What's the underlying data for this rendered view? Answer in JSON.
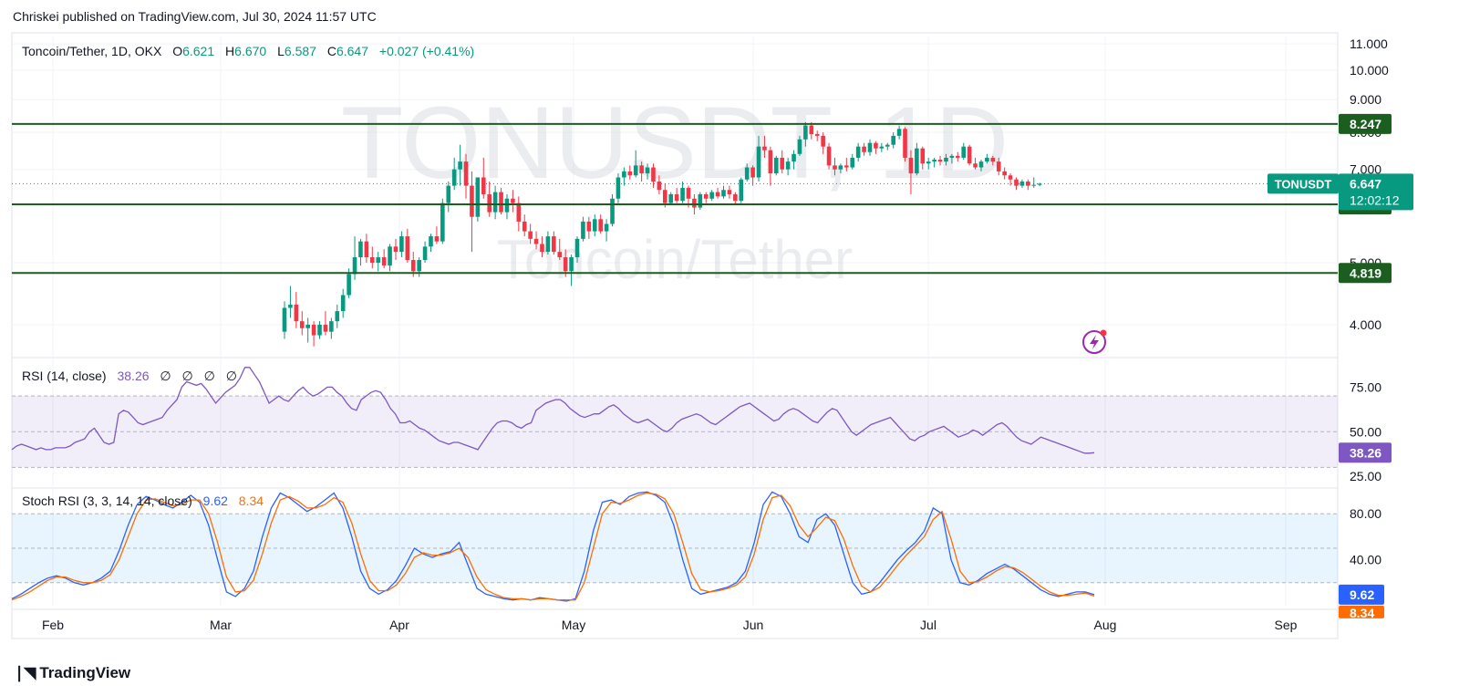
{
  "header": {
    "publisher": "Chriskei published on TradingView.com, Jul 30, 2024 11:57 UTC"
  },
  "footer": {
    "brand": "TradingView"
  },
  "colors": {
    "up": "#089981",
    "down": "#f23645",
    "level": "#1b5e20",
    "rsi": "#7e57c2",
    "stoch_k": "#2962ff",
    "stoch_d": "#ff6d00",
    "ticker_tag": "#089981",
    "rsi_tag": "#7e57c2"
  },
  "chart_data": [
    {
      "type": "candlestick",
      "legend": {
        "symbol": "Toncoin/Tether, 1D, OKX",
        "o_label": "O",
        "o": "6.621",
        "h_label": "H",
        "h": "6.670",
        "l_label": "L",
        "l": "6.587",
        "c_label": "C",
        "c": "6.647",
        "change": "+0.027 (+0.41%)"
      },
      "watermark": {
        "line1": "TONUSDT, 1D",
        "line2": "Toncoin/Tether"
      },
      "y_ticks": [
        "11.000",
        "10.000",
        "9.000",
        "8.000",
        "7.000",
        "5.000",
        "4.000"
      ],
      "ylim": [
        3.6,
        11.3
      ],
      "x_ticks": [
        "Feb",
        "Mar",
        "Apr",
        "May",
        "Jun",
        "Jul",
        "Aug",
        "Sep"
      ],
      "levels": [
        {
          "label": "8.247",
          "value": 8.247
        },
        {
          "label": "6.171",
          "value": 6.171
        },
        {
          "label": "4.819",
          "value": 4.819
        }
      ],
      "last_price": {
        "ticker": "TONUSDT",
        "price": "6.647",
        "countdown": "12:02:12",
        "value": 6.647
      },
      "ohlc": [
        [
          3.9,
          4.35,
          3.8,
          4.25
        ],
        [
          4.25,
          4.6,
          4.1,
          4.3
        ],
        [
          4.3,
          4.5,
          3.95,
          4.05
        ],
        [
          4.05,
          4.2,
          3.85,
          3.95
        ],
        [
          3.95,
          4.1,
          3.75,
          4.0
        ],
        [
          4.0,
          4.05,
          3.7,
          3.85
        ],
        [
          3.85,
          4.05,
          3.8,
          4.0
        ],
        [
          4.0,
          4.2,
          3.85,
          3.9
        ],
        [
          3.9,
          4.1,
          3.8,
          4.05
        ],
        [
          4.05,
          4.3,
          3.95,
          4.2
        ],
        [
          4.2,
          4.55,
          4.1,
          4.45
        ],
        [
          4.45,
          4.9,
          4.4,
          4.8
        ],
        [
          4.8,
          5.5,
          4.7,
          5.1
        ],
        [
          5.1,
          5.45,
          4.95,
          5.4
        ],
        [
          5.4,
          5.55,
          5.0,
          5.1
        ],
        [
          5.1,
          5.3,
          4.9,
          5.0
        ],
        [
          5.0,
          5.2,
          4.85,
          5.1
        ],
        [
          5.1,
          5.25,
          4.9,
          4.95
        ],
        [
          4.95,
          5.35,
          4.85,
          5.3
        ],
        [
          5.3,
          5.45,
          5.05,
          5.2
        ],
        [
          5.2,
          5.6,
          5.1,
          5.5
        ],
        [
          5.5,
          5.65,
          5.0,
          5.05
        ],
        [
          5.05,
          5.2,
          4.75,
          4.85
        ],
        [
          4.85,
          5.1,
          4.75,
          5.05
        ],
        [
          5.05,
          5.4,
          5.0,
          5.3
        ],
        [
          5.3,
          5.55,
          5.2,
          5.5
        ],
        [
          5.5,
          5.7,
          5.35,
          5.4
        ],
        [
          5.4,
          6.3,
          5.35,
          6.2
        ],
        [
          6.2,
          6.7,
          6.0,
          6.6
        ],
        [
          6.6,
          7.3,
          6.5,
          7.0
        ],
        [
          7.0,
          7.65,
          6.6,
          7.2
        ],
        [
          7.2,
          7.4,
          6.3,
          6.6
        ],
        [
          6.6,
          6.95,
          5.2,
          5.9
        ],
        [
          5.9,
          6.8,
          5.8,
          6.8
        ],
        [
          6.8,
          7.3,
          6.3,
          6.4
        ],
        [
          6.4,
          6.7,
          5.9,
          6.0
        ],
        [
          6.0,
          6.6,
          5.85,
          6.45
        ],
        [
          6.45,
          6.55,
          5.95,
          6.0
        ],
        [
          6.0,
          6.4,
          5.85,
          6.3
        ],
        [
          6.3,
          6.5,
          6.0,
          6.2
        ],
        [
          6.2,
          6.35,
          5.6,
          5.8
        ],
        [
          5.8,
          5.95,
          5.5,
          5.6
        ],
        [
          5.6,
          5.75,
          5.35,
          5.45
        ],
        [
          5.45,
          5.6,
          5.25,
          5.35
        ],
        [
          5.35,
          5.5,
          5.1,
          5.2
        ],
        [
          5.2,
          5.6,
          5.15,
          5.5
        ],
        [
          5.5,
          5.6,
          5.15,
          5.2
        ],
        [
          5.2,
          5.45,
          5.05,
          5.1
        ],
        [
          5.1,
          5.25,
          4.75,
          4.85
        ],
        [
          4.85,
          5.15,
          4.6,
          5.1
        ],
        [
          5.1,
          5.5,
          5.0,
          5.45
        ],
        [
          5.45,
          5.9,
          5.4,
          5.8
        ],
        [
          5.8,
          5.9,
          5.45,
          5.6
        ],
        [
          5.6,
          5.95,
          5.5,
          5.85
        ],
        [
          5.85,
          5.95,
          5.55,
          5.6
        ],
        [
          5.6,
          5.85,
          5.4,
          5.75
        ],
        [
          5.75,
          6.4,
          5.7,
          6.3
        ],
        [
          6.3,
          6.9,
          6.2,
          6.8
        ],
        [
          6.8,
          7.05,
          6.6,
          6.95
        ],
        [
          6.95,
          7.1,
          6.75,
          6.85
        ],
        [
          6.85,
          7.5,
          6.8,
          7.1
        ],
        [
          7.1,
          7.2,
          6.7,
          6.9
        ],
        [
          6.9,
          7.15,
          6.75,
          7.05
        ],
        [
          7.05,
          7.15,
          6.55,
          6.7
        ],
        [
          6.7,
          6.85,
          6.4,
          6.5
        ],
        [
          6.5,
          6.65,
          6.1,
          6.2
        ],
        [
          6.2,
          6.45,
          6.15,
          6.4
        ],
        [
          6.4,
          6.55,
          6.2,
          6.25
        ],
        [
          6.25,
          6.7,
          6.2,
          6.55
        ],
        [
          6.55,
          6.6,
          6.1,
          6.3
        ],
        [
          6.3,
          6.4,
          5.95,
          6.1
        ],
        [
          6.1,
          6.45,
          6.05,
          6.4
        ],
        [
          6.4,
          6.45,
          6.2,
          6.3
        ],
        [
          6.3,
          6.5,
          6.25,
          6.45
        ],
        [
          6.45,
          6.55,
          6.3,
          6.35
        ],
        [
          6.35,
          6.6,
          6.3,
          6.5
        ],
        [
          6.5,
          6.6,
          6.3,
          6.4
        ],
        [
          6.4,
          6.45,
          6.15,
          6.25
        ],
        [
          6.25,
          6.8,
          6.2,
          6.75
        ],
        [
          6.75,
          7.15,
          6.7,
          7.05
        ],
        [
          7.05,
          7.1,
          6.6,
          6.8
        ],
        [
          6.8,
          7.9,
          6.7,
          7.6
        ],
        [
          7.6,
          7.9,
          7.3,
          7.5
        ],
        [
          7.5,
          7.6,
          6.6,
          6.9
        ],
        [
          6.9,
          7.35,
          6.85,
          7.3
        ],
        [
          7.3,
          7.5,
          6.9,
          7.0
        ],
        [
          7.0,
          7.3,
          6.85,
          7.2
        ],
        [
          7.2,
          7.5,
          7.0,
          7.4
        ],
        [
          7.4,
          7.9,
          7.35,
          7.8
        ],
        [
          7.8,
          8.3,
          7.6,
          8.2
        ],
        [
          8.2,
          8.3,
          7.8,
          7.95
        ],
        [
          7.95,
          8.05,
          7.75,
          7.9
        ],
        [
          7.9,
          8.0,
          7.4,
          7.6
        ],
        [
          7.6,
          7.7,
          7.0,
          7.1
        ],
        [
          7.1,
          7.3,
          6.85,
          7.0
        ],
        [
          7.0,
          7.15,
          6.9,
          7.1
        ],
        [
          7.1,
          7.3,
          6.95,
          7.05
        ],
        [
          7.05,
          7.4,
          7.0,
          7.3
        ],
        [
          7.3,
          7.7,
          7.2,
          7.6
        ],
        [
          7.6,
          7.7,
          7.35,
          7.45
        ],
        [
          7.45,
          7.8,
          7.35,
          7.7
        ],
        [
          7.7,
          7.75,
          7.4,
          7.55
        ],
        [
          7.55,
          7.7,
          7.45,
          7.6
        ],
        [
          7.6,
          7.7,
          7.5,
          7.65
        ],
        [
          7.65,
          8.0,
          7.55,
          7.9
        ],
        [
          7.9,
          8.2,
          7.8,
          8.1
        ],
        [
          8.1,
          8.15,
          7.2,
          7.3
        ],
        [
          7.3,
          7.5,
          6.4,
          6.9
        ],
        [
          6.9,
          7.7,
          6.85,
          7.55
        ],
        [
          7.55,
          7.6,
          7.0,
          7.15
        ],
        [
          7.15,
          7.3,
          7.0,
          7.2
        ],
        [
          7.2,
          7.3,
          7.05,
          7.25
        ],
        [
          7.25,
          7.35,
          7.1,
          7.2
        ],
        [
          7.2,
          7.4,
          7.1,
          7.3
        ],
        [
          7.3,
          7.4,
          7.15,
          7.35
        ],
        [
          7.35,
          7.45,
          7.2,
          7.3
        ],
        [
          7.3,
          7.7,
          7.25,
          7.6
        ],
        [
          7.6,
          7.65,
          7.1,
          7.15
        ],
        [
          7.15,
          7.3,
          7.0,
          7.05
        ],
        [
          7.05,
          7.25,
          6.95,
          7.2
        ],
        [
          7.2,
          7.4,
          7.15,
          7.3
        ],
        [
          7.3,
          7.35,
          7.1,
          7.2
        ],
        [
          7.2,
          7.3,
          6.85,
          6.95
        ],
        [
          6.95,
          7.05,
          6.75,
          6.85
        ],
        [
          6.85,
          6.9,
          6.6,
          6.75
        ],
        [
          6.75,
          6.8,
          6.5,
          6.6
        ],
        [
          6.6,
          6.75,
          6.55,
          6.7
        ],
        [
          6.7,
          6.75,
          6.5,
          6.6
        ],
        [
          6.6,
          6.8,
          6.55,
          6.62
        ],
        [
          6.621,
          6.67,
          6.587,
          6.647
        ]
      ]
    },
    {
      "type": "line",
      "title": "RSI (14, close)",
      "value_label": "38.26",
      "placeholders": [
        "∅",
        "∅",
        "∅",
        "∅"
      ],
      "y_ticks": [
        "75.00",
        "50.00",
        "25.00"
      ],
      "ylim": [
        20,
        90
      ],
      "band": [
        30,
        70
      ],
      "last_value": "38.26",
      "values": [
        40,
        42,
        43,
        42,
        41,
        40,
        41,
        40,
        40,
        41,
        41,
        41,
        42,
        44,
        45,
        46,
        50,
        52,
        48,
        44,
        43,
        44,
        60,
        62,
        61,
        58,
        55,
        54,
        55,
        56,
        57,
        58,
        62,
        65,
        68,
        75,
        78,
        77,
        76,
        77,
        74,
        70,
        66,
        69,
        72,
        74,
        76,
        80,
        86,
        86,
        82,
        78,
        72,
        66,
        68,
        70,
        68,
        67,
        70,
        73,
        75,
        72,
        70,
        71,
        73,
        75,
        75,
        72,
        70,
        66,
        63,
        62,
        68,
        70,
        72,
        73,
        72,
        68,
        63,
        60,
        55,
        55,
        56,
        54,
        52,
        51,
        49,
        47,
        45,
        44,
        43,
        44,
        44,
        43,
        42,
        41,
        40,
        44,
        48,
        52,
        55,
        56,
        56,
        55,
        53,
        52,
        54,
        55,
        62,
        64,
        66,
        67,
        68,
        68,
        66,
        63,
        61,
        59,
        58,
        59,
        60,
        60,
        62,
        64,
        65,
        63,
        60,
        58,
        56,
        55,
        56,
        57,
        55,
        53,
        51,
        50,
        52,
        55,
        57,
        58,
        59,
        60,
        59,
        57,
        55,
        54,
        56,
        58,
        60,
        62,
        64,
        65,
        66,
        64,
        62,
        60,
        58,
        56,
        57,
        60,
        62,
        63,
        62,
        60,
        58,
        56,
        55,
        58,
        61,
        63,
        62,
        58,
        54,
        50,
        48,
        50,
        52,
        54,
        55,
        56,
        57,
        58,
        55,
        52,
        49,
        46,
        45,
        47,
        48,
        50,
        51,
        52,
        53,
        51,
        49,
        47,
        48,
        49,
        51,
        50,
        48,
        50,
        52,
        54,
        55,
        53,
        50,
        47,
        45,
        44,
        43,
        45,
        47,
        46,
        45,
        44,
        43,
        42,
        41,
        40,
        39,
        38,
        38,
        38.26
      ]
    },
    {
      "type": "line",
      "title": "Stoch RSI (3, 3, 14, 14, close)",
      "k_label": "9.62",
      "d_label": "8.34",
      "y_ticks": [
        "80.00",
        "40.00"
      ],
      "ylim": [
        0,
        100
      ],
      "band": [
        20,
        80
      ],
      "last_k": "9.62",
      "last_d": "8.34",
      "series": [
        {
          "values": [
            6,
            10,
            15,
            20,
            24,
            26,
            24,
            20,
            18,
            20,
            24,
            30,
            48,
            70,
            88,
            95,
            92,
            88,
            85,
            90,
            96,
            90,
            70,
            40,
            12,
            8,
            15,
            30,
            60,
            85,
            98,
            94,
            88,
            82,
            86,
            92,
            98,
            85,
            60,
            30,
            15,
            10,
            14,
            22,
            35,
            50,
            45,
            42,
            45,
            47,
            55,
            35,
            15,
            10,
            8,
            6,
            5,
            6,
            5,
            7,
            6,
            5,
            4,
            6,
            30,
            65,
            90,
            92,
            88,
            95,
            98,
            99,
            96,
            90,
            70,
            40,
            15,
            10,
            12,
            14,
            16,
            20,
            30,
            55,
            88,
            99,
            95,
            80,
            60,
            55,
            75,
            80,
            70,
            45,
            20,
            10,
            12,
            20,
            30,
            40,
            48,
            55,
            65,
            85,
            80,
            40,
            20,
            18,
            22,
            28,
            32,
            36,
            32,
            26,
            20,
            14,
            10,
            8,
            10,
            12,
            12,
            9.62
          ]
        },
        {
          "values": [
            5,
            8,
            12,
            17,
            22,
            25,
            25,
            22,
            20,
            20,
            22,
            27,
            40,
            60,
            80,
            92,
            93,
            90,
            87,
            88,
            92,
            92,
            80,
            55,
            25,
            12,
            13,
            22,
            45,
            72,
            92,
            95,
            91,
            85,
            85,
            88,
            94,
            90,
            72,
            45,
            22,
            13,
            13,
            18,
            28,
            42,
            46,
            44,
            44,
            46,
            50,
            42,
            25,
            14,
            10,
            7,
            6,
            6,
            5,
            6,
            6,
            5,
            5,
            5,
            20,
            50,
            80,
            90,
            89,
            92,
            96,
            98,
            97,
            93,
            80,
            55,
            28,
            14,
            12,
            13,
            15,
            18,
            25,
            45,
            75,
            94,
            96,
            87,
            70,
            60,
            68,
            77,
            74,
            58,
            35,
            17,
            12,
            16,
            25,
            35,
            44,
            52,
            60,
            75,
            82,
            58,
            30,
            20,
            21,
            25,
            30,
            34,
            33,
            29,
            23,
            17,
            12,
            9,
            9,
            10,
            11,
            8.34
          ]
        }
      ]
    }
  ]
}
